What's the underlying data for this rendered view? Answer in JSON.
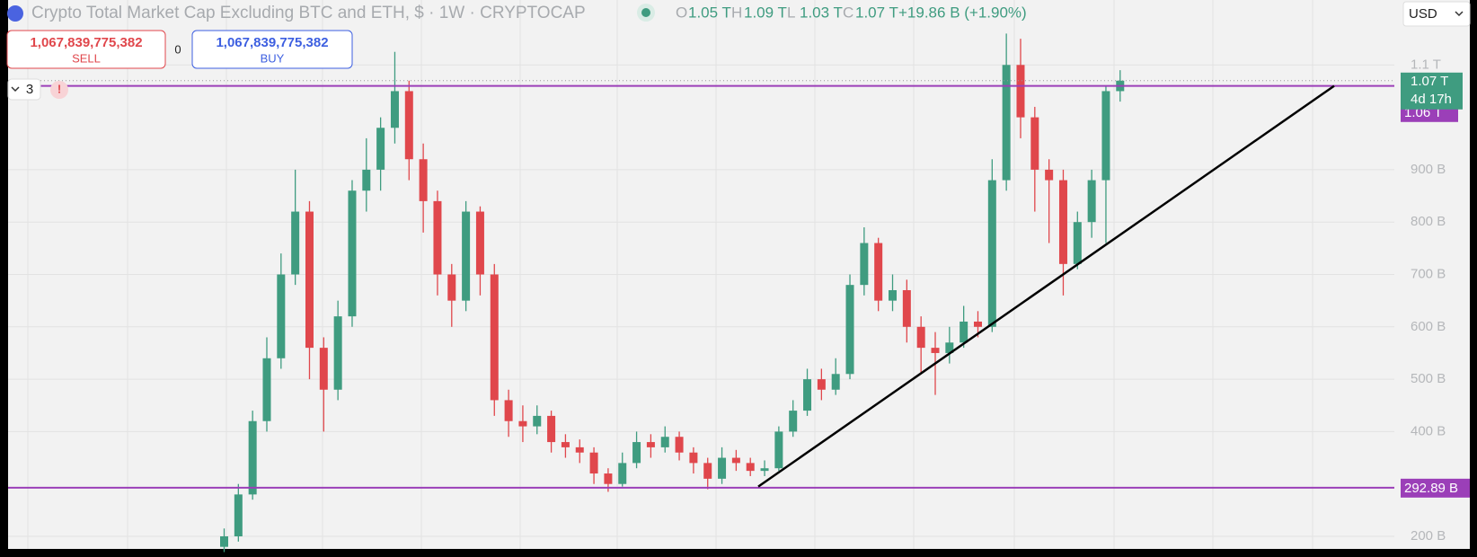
{
  "header": {
    "title": "Crypto Total Market Cap Excluding BTC and ETH, $ · 1W · CRYPTOCAP",
    "ohlc": [
      {
        "key": "O",
        "value": "1.05 T"
      },
      {
        "key": "H",
        "value": "1.09 T"
      },
      {
        "key": "L",
        "value": "1.03 T"
      },
      {
        "key": "C",
        "value": "1.07 T"
      }
    ],
    "change": "+19.86 B (+1.90%)"
  },
  "trade": {
    "sell_price": "1,067,839,775,382",
    "sell_label": "SELL",
    "spread": "0",
    "buy_price": "1,067,839,775,382",
    "buy_label": "BUY"
  },
  "indicators_count": "3",
  "currency": "USD",
  "chart_data": {
    "type": "candlestick",
    "open": [
      180,
      200,
      280,
      420,
      540,
      700,
      820,
      560,
      480,
      620,
      860,
      900,
      980,
      1050,
      920,
      840,
      700,
      650,
      820,
      700,
      460,
      420,
      410,
      430,
      380,
      370,
      360,
      320,
      300,
      340,
      380,
      370,
      390,
      360,
      340,
      310,
      350,
      340,
      325,
      330,
      400,
      440,
      500,
      480,
      510,
      680,
      760,
      650,
      670,
      600,
      560,
      550,
      570,
      610,
      600,
      880,
      1100,
      1000,
      900,
      880,
      720,
      800,
      880,
      1050
    ],
    "high": [
      215,
      300,
      440,
      580,
      740,
      900,
      840,
      580,
      650,
      880,
      960,
      1000,
      1125,
      1070,
      950,
      860,
      720,
      840,
      830,
      720,
      480,
      450,
      450,
      440,
      395,
      385,
      370,
      330,
      360,
      400,
      395,
      410,
      400,
      370,
      350,
      370,
      365,
      350,
      345,
      410,
      460,
      520,
      520,
      540,
      700,
      790,
      770,
      700,
      690,
      620,
      590,
      600,
      640,
      630,
      920,
      1160,
      1150,
      1020,
      920,
      900,
      820,
      900,
      1060,
      1090
    ],
    "low": [
      170,
      190,
      270,
      400,
      520,
      680,
      500,
      400,
      460,
      600,
      820,
      860,
      950,
      880,
      780,
      660,
      600,
      630,
      660,
      430,
      390,
      380,
      395,
      360,
      350,
      340,
      300,
      285,
      295,
      330,
      350,
      360,
      345,
      320,
      290,
      300,
      325,
      315,
      315,
      325,
      390,
      430,
      460,
      470,
      500,
      660,
      630,
      630,
      570,
      510,
      470,
      530,
      560,
      580,
      590,
      860,
      960,
      820,
      760,
      660,
      710,
      770,
      760,
      1030
    ],
    "close": [
      200,
      280,
      420,
      540,
      700,
      820,
      560,
      480,
      620,
      860,
      900,
      980,
      1050,
      920,
      840,
      700,
      650,
      820,
      700,
      460,
      420,
      410,
      430,
      380,
      370,
      360,
      320,
      300,
      340,
      380,
      370,
      390,
      360,
      340,
      310,
      350,
      340,
      325,
      330,
      400,
      440,
      500,
      480,
      510,
      680,
      760,
      650,
      670,
      600,
      560,
      550,
      570,
      610,
      600,
      880,
      1100,
      1000,
      900,
      880,
      720,
      800,
      880,
      1050,
      1070
    ],
    "up_color": "#3f9c80",
    "down_color": "#e0474c",
    "ylim": [
      176,
      1224
    ],
    "yticks": [
      {
        "value": 200,
        "label": "200 B"
      },
      {
        "value": 400,
        "label": "400 B"
      },
      {
        "value": 500,
        "label": "500 B"
      },
      {
        "value": 600,
        "label": "600 B"
      },
      {
        "value": 700,
        "label": "700 B"
      },
      {
        "value": 800,
        "label": "800 B"
      },
      {
        "value": 900,
        "label": "900 B"
      },
      {
        "value": 1100,
        "label": "1.1 T"
      }
    ],
    "grid": true,
    "lines": [
      {
        "value": 1060,
        "label": "1.06 T",
        "color": "#9b3fb8"
      },
      {
        "value": 292.89,
        "label": "292.89 B",
        "color": "#9b3fb8"
      }
    ],
    "last_price": {
      "value": 1070,
      "label": "1.07 T",
      "countdown": "4d 17h"
    },
    "trend_line": {
      "from": 295,
      "to": 1060,
      "color": "#000000"
    }
  }
}
